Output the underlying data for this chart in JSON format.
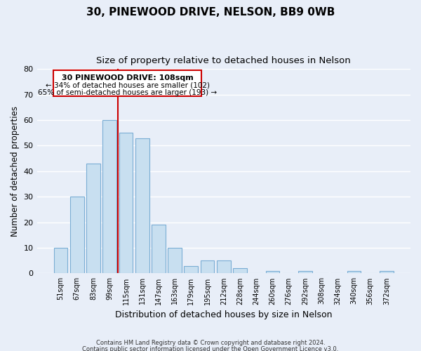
{
  "title": "30, PINEWOOD DRIVE, NELSON, BB9 0WB",
  "subtitle": "Size of property relative to detached houses in Nelson",
  "xlabel": "Distribution of detached houses by size in Nelson",
  "ylabel": "Number of detached properties",
  "bar_labels": [
    "51sqm",
    "67sqm",
    "83sqm",
    "99sqm",
    "115sqm",
    "131sqm",
    "147sqm",
    "163sqm",
    "179sqm",
    "195sqm",
    "212sqm",
    "228sqm",
    "244sqm",
    "260sqm",
    "276sqm",
    "292sqm",
    "308sqm",
    "324sqm",
    "340sqm",
    "356sqm",
    "372sqm"
  ],
  "bar_values": [
    10,
    30,
    43,
    60,
    55,
    53,
    19,
    10,
    3,
    5,
    5,
    2,
    0,
    1,
    0,
    1,
    0,
    0,
    1,
    0,
    1
  ],
  "bar_color": "#c8dff0",
  "bar_edge_color": "#7aadd4",
  "vline_x": 3.5,
  "vline_color": "#cc0000",
  "ylim": [
    0,
    80
  ],
  "yticks": [
    0,
    10,
    20,
    30,
    40,
    50,
    60,
    70,
    80
  ],
  "annotation_title": "30 PINEWOOD DRIVE: 108sqm",
  "annotation_line1": "← 34% of detached houses are smaller (102)",
  "annotation_line2": "65% of semi-detached houses are larger (193) →",
  "annotation_box_color": "#ffffff",
  "annotation_box_edge": "#cc0000",
  "footer_line1": "Contains HM Land Registry data © Crown copyright and database right 2024.",
  "footer_line2": "Contains public sector information licensed under the Open Government Licence v3.0.",
  "background_color": "#e8eef8",
  "grid_color": "#ffffff",
  "title_fontsize": 11,
  "subtitle_fontsize": 9.5,
  "ylabel_fontsize": 8.5,
  "xlabel_fontsize": 9,
  "tick_fontsize": 7,
  "ytick_fontsize": 8,
  "ann_title_fontsize": 8,
  "ann_text_fontsize": 7.5,
  "footer_fontsize": 6
}
